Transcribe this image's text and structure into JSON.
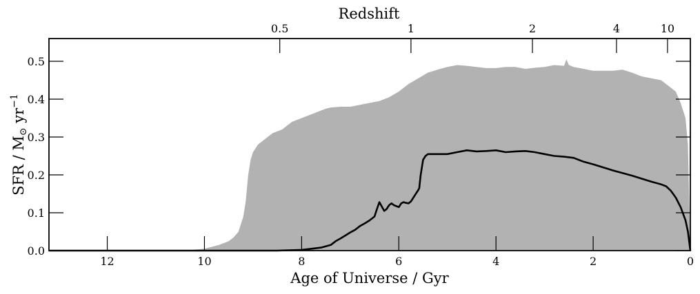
{
  "chart_data": {
    "type": "area",
    "xlabel": "Age of Universe / Gyr",
    "ylabel_main": "SFR / M",
    "ylabel_sun": "⊙",
    "ylabel_units": " yr",
    "ylabel_sup": "−1",
    "top_axis_label": "Redshift",
    "xlim": [
      13.2,
      0
    ],
    "ylim": [
      0,
      0.56
    ],
    "x_ticks": [
      12,
      10,
      8,
      6,
      4,
      2,
      0
    ],
    "x_tick_labels": [
      "12",
      "10",
      "8",
      "6",
      "4",
      "2",
      "0"
    ],
    "y_ticks": [
      0.0,
      0.1,
      0.2,
      0.3,
      0.4,
      0.5
    ],
    "y_tick_labels": [
      "0.0",
      "0.1",
      "0.2",
      "0.3",
      "0.4",
      "0.5"
    ],
    "redshift_ticks": [
      {
        "label": "0.5",
        "age": 8.45
      },
      {
        "label": "1",
        "age": 5.75
      },
      {
        "label": "2",
        "age": 3.25
      },
      {
        "label": "4",
        "age": 1.52
      },
      {
        "label": "10",
        "age": 0.47
      }
    ],
    "grid": false,
    "series": [
      {
        "role": "band",
        "color": "#b2b2b2",
        "x": [
          13.2,
          10.3,
          10.0,
          9.7,
          9.5,
          9.4,
          9.3,
          9.25,
          9.2,
          9.15,
          9.1,
          9.05,
          9.0,
          8.95,
          8.9,
          8.85,
          8.8,
          8.7,
          8.6,
          8.5,
          8.4,
          8.3,
          8.2,
          8.1,
          8.0,
          7.9,
          7.8,
          7.7,
          7.6,
          7.5,
          7.4,
          7.2,
          7.0,
          6.8,
          6.6,
          6.4,
          6.2,
          6.0,
          5.8,
          5.6,
          5.4,
          5.2,
          5.0,
          4.8,
          4.6,
          4.4,
          4.2,
          4.0,
          3.8,
          3.6,
          3.4,
          3.2,
          3.0,
          2.8,
          2.6,
          2.55,
          2.5,
          2.4,
          2.2,
          2.0,
          1.8,
          1.6,
          1.4,
          1.2,
          1.0,
          0.8,
          0.6,
          0.5,
          0.4,
          0.3,
          0.2,
          0.1,
          0.05,
          0.0
        ],
        "upper": [
          0.0,
          0.001,
          0.005,
          0.015,
          0.025,
          0.035,
          0.05,
          0.07,
          0.09,
          0.13,
          0.2,
          0.24,
          0.26,
          0.27,
          0.28,
          0.285,
          0.29,
          0.3,
          0.31,
          0.315,
          0.32,
          0.33,
          0.34,
          0.345,
          0.35,
          0.355,
          0.36,
          0.365,
          0.37,
          0.375,
          0.378,
          0.38,
          0.38,
          0.385,
          0.39,
          0.395,
          0.405,
          0.42,
          0.44,
          0.455,
          0.47,
          0.478,
          0.485,
          0.49,
          0.488,
          0.485,
          0.482,
          0.482,
          0.485,
          0.485,
          0.48,
          0.483,
          0.485,
          0.49,
          0.488,
          0.505,
          0.49,
          0.485,
          0.48,
          0.475,
          0.475,
          0.475,
          0.478,
          0.47,
          0.46,
          0.455,
          0.45,
          0.44,
          0.43,
          0.42,
          0.39,
          0.35,
          0.28,
          0.0
        ],
        "lower": [
          0.0,
          0.0,
          0.0,
          0.0,
          0.0,
          0.0,
          0.0,
          0.0,
          0.0,
          0.0,
          0.0,
          0.0,
          0.0,
          0.0,
          0.0,
          0.0,
          0.0,
          0.0,
          0.0,
          0.0,
          0.0,
          0.0,
          0.0,
          0.0,
          0.0,
          0.0,
          0.0,
          0.0,
          0.0,
          0.0,
          0.0,
          0.0,
          0.0,
          0.0,
          0.0,
          0.0,
          0.0,
          0.0,
          0.0,
          0.0,
          0.0,
          0.0,
          0.0,
          0.0,
          0.0,
          0.0,
          0.0,
          0.0,
          0.0,
          0.0,
          0.0,
          0.0,
          0.0,
          0.0,
          0.0,
          0.0,
          0.0,
          0.0,
          0.0,
          0.0,
          0.0,
          0.0,
          0.0,
          0.0,
          0.0,
          0.0,
          0.0,
          0.0,
          0.0,
          0.0,
          0.0,
          0.0,
          0.0,
          0.0
        ]
      },
      {
        "role": "median",
        "color": "#000000",
        "x": [
          13.2,
          8.5,
          8.0,
          7.8,
          7.6,
          7.4,
          7.3,
          7.2,
          7.1,
          7.0,
          6.9,
          6.8,
          6.7,
          6.6,
          6.5,
          6.45,
          6.4,
          6.3,
          6.25,
          6.2,
          6.15,
          6.1,
          6.0,
          5.95,
          5.9,
          5.85,
          5.8,
          5.75,
          5.7,
          5.65,
          5.6,
          5.58,
          5.55,
          5.5,
          5.45,
          5.4,
          5.35,
          5.3,
          5.2,
          5.0,
          4.8,
          4.6,
          4.4,
          4.2,
          4.0,
          3.8,
          3.6,
          3.4,
          3.2,
          3.0,
          2.8,
          2.6,
          2.4,
          2.2,
          2.0,
          1.8,
          1.6,
          1.4,
          1.2,
          1.0,
          0.8,
          0.6,
          0.5,
          0.4,
          0.3,
          0.2,
          0.1,
          0.05,
          0.0
        ],
        "y": [
          0.0,
          0.0,
          0.002,
          0.005,
          0.008,
          0.015,
          0.025,
          0.032,
          0.04,
          0.048,
          0.055,
          0.065,
          0.072,
          0.08,
          0.09,
          0.11,
          0.128,
          0.105,
          0.11,
          0.12,
          0.125,
          0.12,
          0.115,
          0.125,
          0.128,
          0.126,
          0.125,
          0.13,
          0.14,
          0.15,
          0.16,
          0.165,
          0.2,
          0.24,
          0.25,
          0.255,
          0.255,
          0.255,
          0.255,
          0.255,
          0.26,
          0.265,
          0.262,
          0.263,
          0.265,
          0.26,
          0.262,
          0.263,
          0.26,
          0.255,
          0.25,
          0.248,
          0.245,
          0.235,
          0.228,
          0.22,
          0.212,
          0.205,
          0.198,
          0.19,
          0.182,
          0.175,
          0.17,
          0.158,
          0.14,
          0.115,
          0.08,
          0.05,
          0.0
        ]
      }
    ]
  }
}
